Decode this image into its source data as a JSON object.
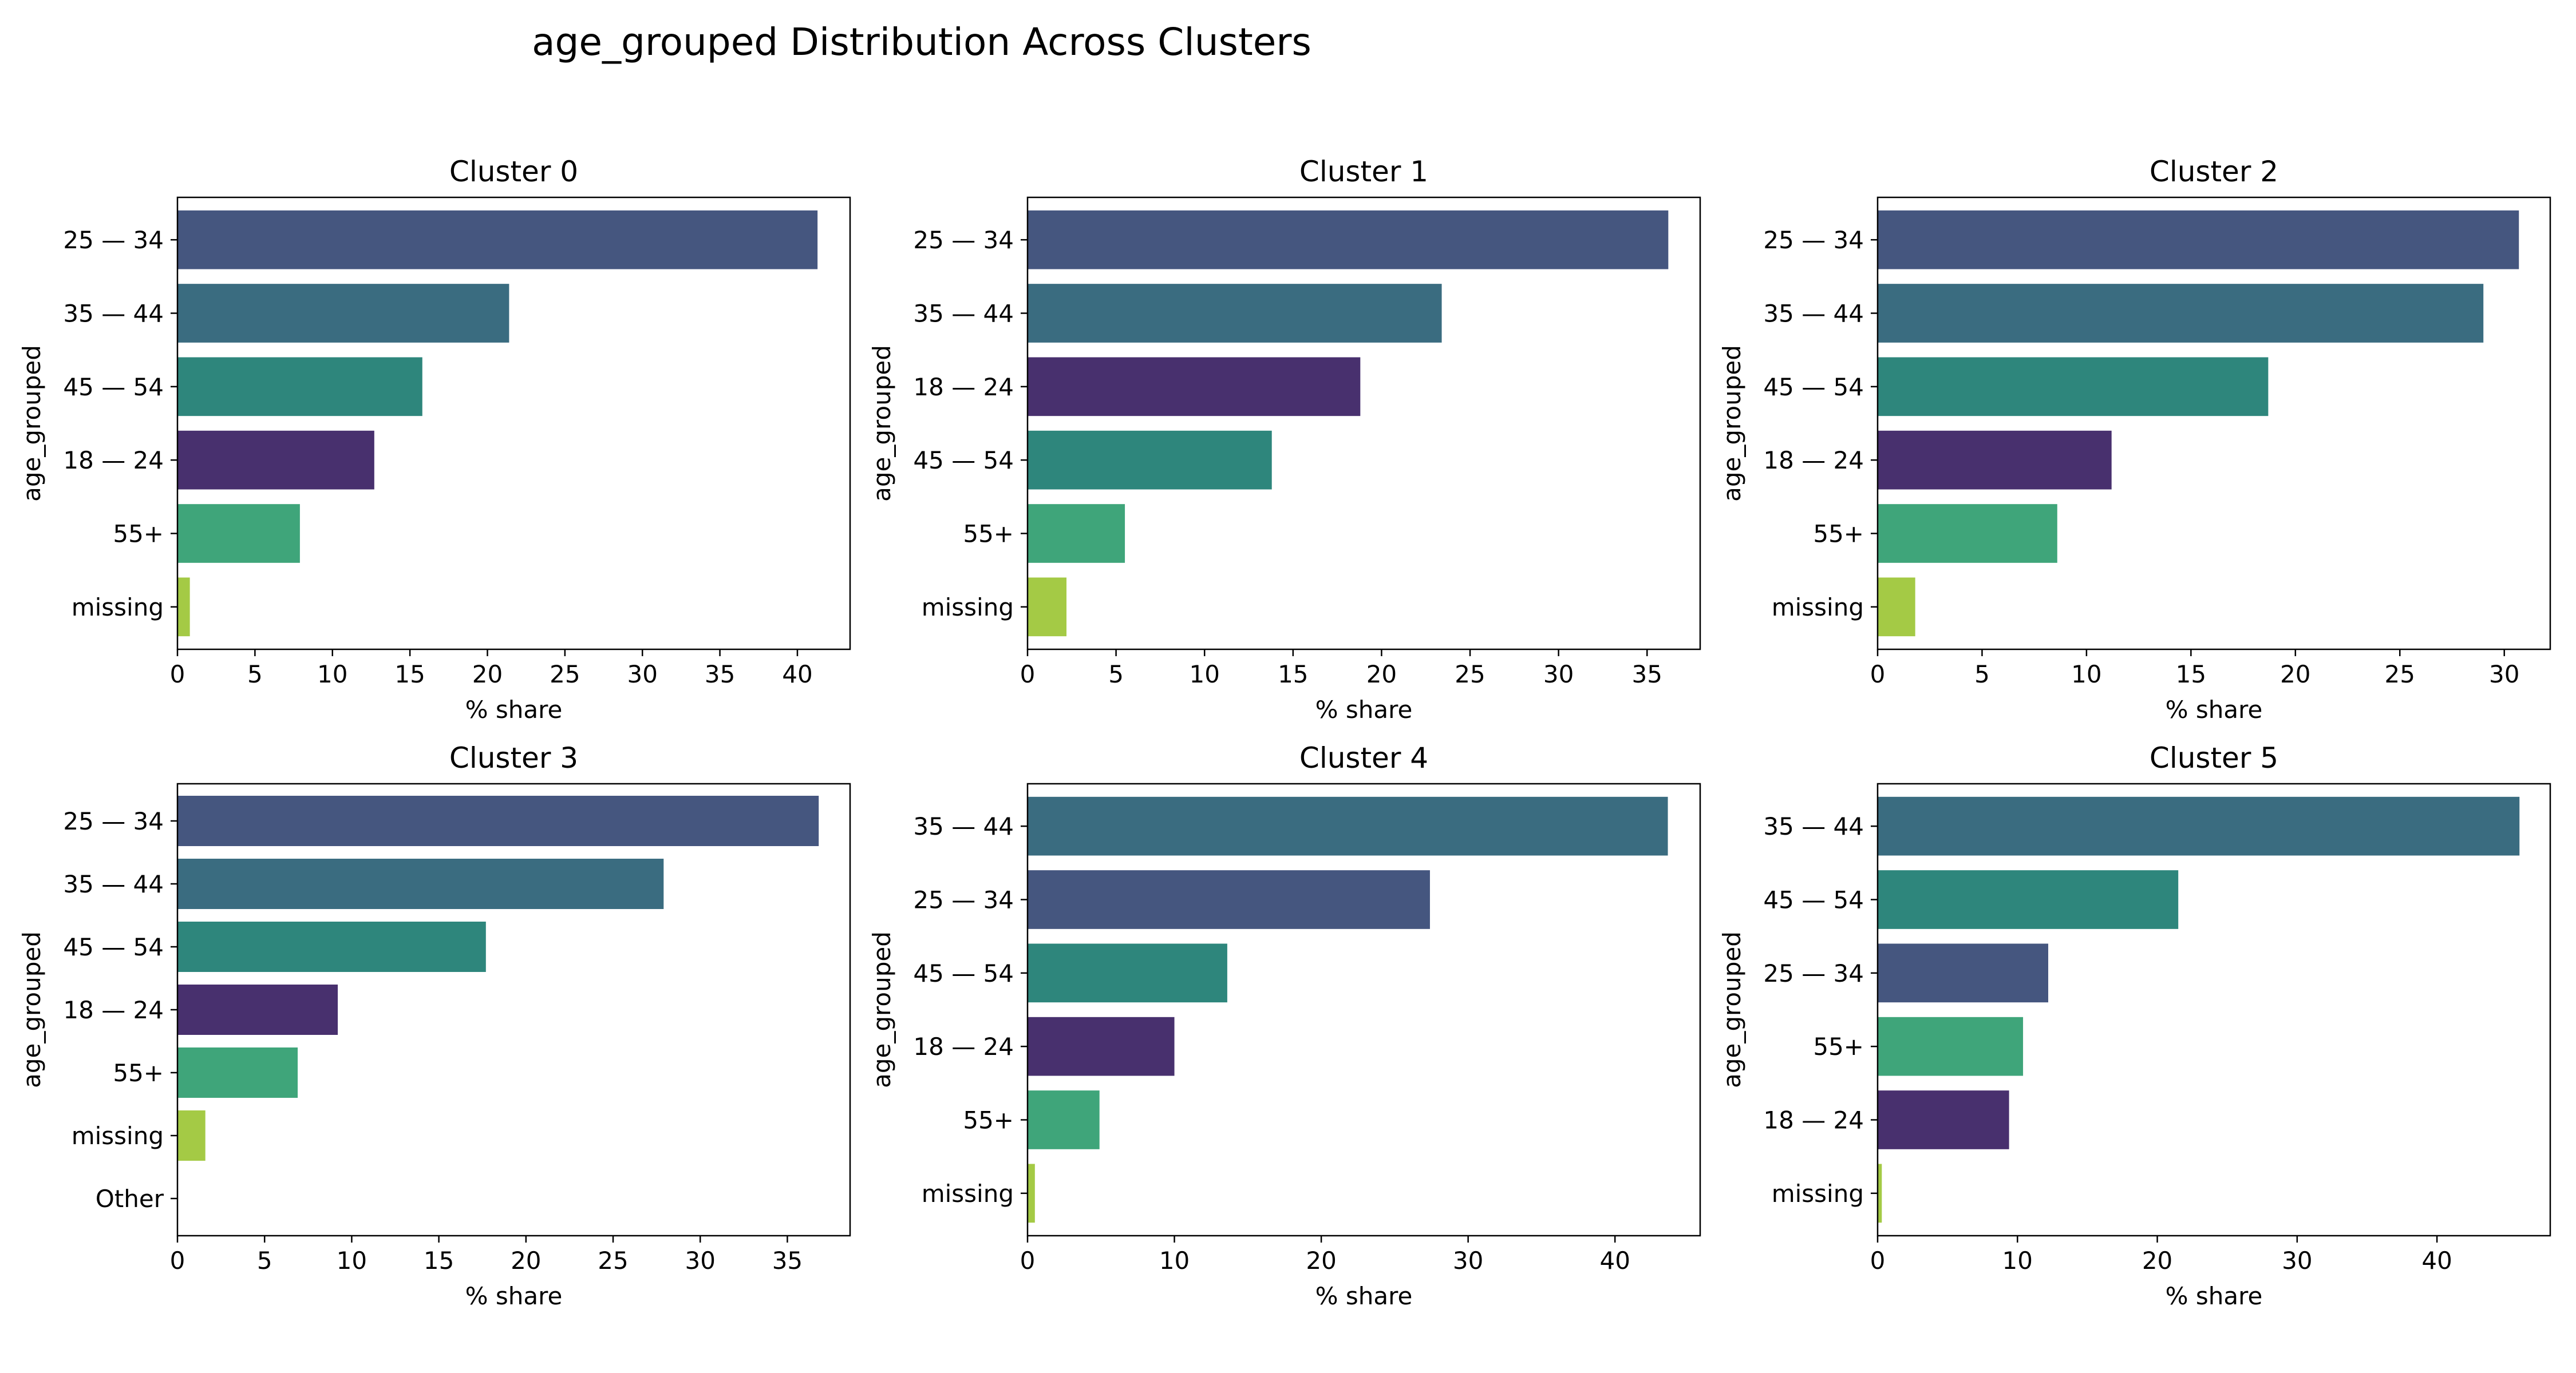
{
  "title": "age_grouped Distribution Across Clusters",
  "colors": {
    "18 — 24": "#48306e",
    "25 — 34": "#45567f",
    "35 — 44": "#3a6c80",
    "45 — 54": "#2e867c",
    "55+": "#3fa57a",
    "missing": "#a4ca45",
    "Other": "#ffffff"
  },
  "chart_data": [
    {
      "type": "bar",
      "orientation": "horizontal",
      "title": "Cluster 0",
      "xlabel": "% share",
      "ylabel": "age_grouped",
      "xlim": [
        0,
        43.4
      ],
      "xticks": [
        0,
        5,
        10,
        15,
        20,
        25,
        30,
        35,
        40
      ],
      "categories": [
        "25 — 34",
        "35 — 44",
        "45 — 54",
        "18 — 24",
        "55+",
        "missing"
      ],
      "values": [
        41.3,
        21.4,
        15.8,
        12.7,
        7.9,
        0.8
      ]
    },
    {
      "type": "bar",
      "orientation": "horizontal",
      "title": "Cluster 1",
      "xlabel": "% share",
      "ylabel": "age_grouped",
      "xlim": [
        0,
        38.0
      ],
      "xticks": [
        0,
        5,
        10,
        15,
        20,
        25,
        30,
        35
      ],
      "categories": [
        "25 — 34",
        "35 — 44",
        "18 — 24",
        "45 — 54",
        "55+",
        "missing"
      ],
      "values": [
        36.2,
        23.4,
        18.8,
        13.8,
        5.5,
        2.2
      ]
    },
    {
      "type": "bar",
      "orientation": "horizontal",
      "title": "Cluster 2",
      "xlabel": "% share",
      "ylabel": "age_grouped",
      "xlim": [
        0,
        32.2
      ],
      "xticks": [
        0,
        5,
        10,
        15,
        20,
        25,
        30
      ],
      "categories": [
        "25 — 34",
        "35 — 44",
        "45 — 54",
        "18 — 24",
        "55+",
        "missing"
      ],
      "values": [
        30.7,
        29.0,
        18.7,
        11.2,
        8.6,
        1.8
      ]
    },
    {
      "type": "bar",
      "orientation": "horizontal",
      "title": "Cluster 3",
      "xlabel": "% share",
      "ylabel": "age_grouped",
      "xlim": [
        0,
        38.6
      ],
      "xticks": [
        0,
        5,
        10,
        15,
        20,
        25,
        30,
        35
      ],
      "categories": [
        "25 — 34",
        "35 — 44",
        "45 — 54",
        "18 — 24",
        "55+",
        "missing",
        "Other"
      ],
      "values": [
        36.8,
        27.9,
        17.7,
        9.2,
        6.9,
        1.6,
        0.0
      ]
    },
    {
      "type": "bar",
      "orientation": "horizontal",
      "title": "Cluster 4",
      "xlabel": "% share",
      "ylabel": "age_grouped",
      "xlim": [
        0,
        45.8
      ],
      "xticks": [
        0,
        10,
        20,
        30,
        40
      ],
      "categories": [
        "35 — 44",
        "25 — 34",
        "45 — 54",
        "18 — 24",
        "55+",
        "missing"
      ],
      "values": [
        43.6,
        27.4,
        13.6,
        10.0,
        4.9,
        0.5
      ]
    },
    {
      "type": "bar",
      "orientation": "horizontal",
      "title": "Cluster 5",
      "xlabel": "% share",
      "ylabel": "age_grouped",
      "xlim": [
        0,
        48.1
      ],
      "xticks": [
        0,
        10,
        20,
        30,
        40
      ],
      "categories": [
        "35 — 44",
        "45 — 54",
        "25 — 34",
        "55+",
        "18 — 24",
        "missing"
      ],
      "values": [
        45.9,
        21.5,
        12.2,
        10.4,
        9.4,
        0.3
      ]
    }
  ]
}
